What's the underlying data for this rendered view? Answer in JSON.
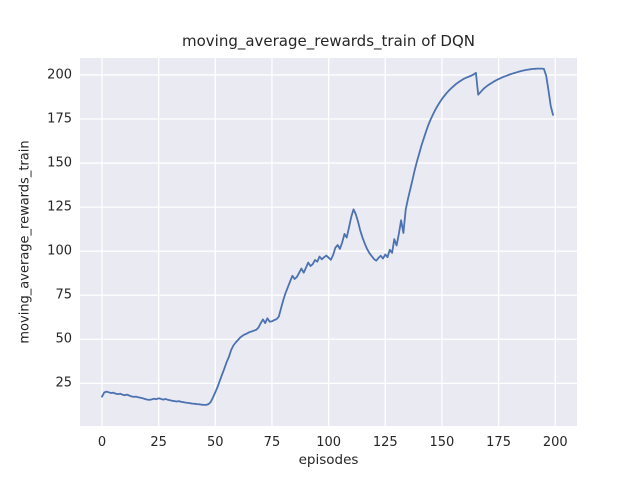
{
  "chart_data": {
    "type": "line",
    "title": "moving_average_rewards_train of DQN",
    "xlabel": "episodes",
    "ylabel": "moving_average_rewards_train",
    "series_name": "moving average rewards (train)",
    "x_start": 0,
    "x_step": 1,
    "values": [
      17.4,
      19.8,
      20.3,
      19.9,
      19.5,
      19.7,
      19.2,
      18.9,
      19.1,
      18.6,
      18.3,
      18.6,
      18.1,
      17.6,
      17.3,
      17.5,
      17.1,
      16.8,
      16.5,
      16.1,
      15.8,
      15.6,
      15.9,
      16.3,
      16.0,
      16.5,
      16.2,
      15.8,
      16.1,
      15.7,
      15.4,
      15.1,
      14.9,
      14.7,
      14.9,
      14.5,
      14.3,
      14.1,
      13.9,
      13.7,
      13.5,
      13.4,
      13.2,
      13.1,
      12.9,
      12.8,
      12.8,
      13.2,
      14.5,
      17.0,
      20.0,
      23.0,
      26.5,
      30.0,
      33.5,
      37.0,
      40.0,
      44.0,
      46.5,
      48.2,
      49.6,
      51.0,
      52.0,
      52.8,
      53.3,
      54.0,
      54.4,
      54.9,
      55.3,
      56.6,
      59.0,
      61.3,
      59.2,
      61.9,
      60.0,
      60.2,
      60.9,
      61.4,
      62.8,
      67.5,
      72.3,
      76.3,
      79.5,
      82.8,
      86.0,
      84.2,
      85.4,
      87.8,
      90.1,
      87.8,
      90.7,
      93.5,
      91.6,
      92.6,
      95.0,
      94.0,
      96.9,
      95.4,
      96.6,
      97.5,
      96.3,
      95.1,
      97.8,
      102.0,
      103.5,
      101.3,
      105.0,
      109.8,
      107.7,
      113.5,
      119.5,
      123.7,
      121.0,
      116.6,
      111.6,
      107.6,
      104.1,
      101.2,
      98.9,
      97.2,
      95.6,
      94.6,
      96.2,
      97.4,
      95.8,
      98.1,
      96.6,
      100.8,
      99.0,
      106.8,
      103.2,
      110.0,
      117.5,
      110.3,
      123.5,
      129.5,
      135.0,
      140.5,
      146.0,
      151.0,
      155.5,
      160.0,
      164.0,
      168.0,
      171.5,
      174.7,
      177.5,
      180.0,
      182.3,
      184.4,
      186.3,
      188.0,
      189.6,
      191.0,
      192.3,
      193.5,
      194.6,
      195.6,
      196.5,
      197.3,
      198.0,
      198.6,
      199.1,
      199.6,
      200.3,
      201.2,
      188.8,
      190.2,
      191.6,
      192.8,
      193.8,
      194.7,
      195.5,
      196.3,
      197.0,
      197.6,
      198.2,
      198.8,
      199.3,
      199.8,
      200.3,
      200.7,
      201.1,
      201.5,
      201.9,
      202.2,
      202.5,
      202.8,
      203.0,
      203.2,
      203.4,
      203.5,
      203.6,
      203.6,
      203.6,
      203.4,
      199.5,
      191.5,
      182.5,
      177.3
    ],
    "xticks": [
      0,
      25,
      50,
      75,
      100,
      125,
      150,
      175,
      200
    ],
    "yticks": [
      25,
      50,
      75,
      100,
      125,
      150,
      175,
      200
    ],
    "xlim": [
      -9.7,
      209.6
    ],
    "ylim": [
      0.8,
      209.6
    ],
    "grid": true,
    "legend": "none",
    "line_color": "#4c72b0",
    "line_width": 1.8,
    "plot_bg_color": "#eaeaf2",
    "grid_color": "#ffffff",
    "text_color": "#262626",
    "figure_bg_color": "#ffffff"
  }
}
